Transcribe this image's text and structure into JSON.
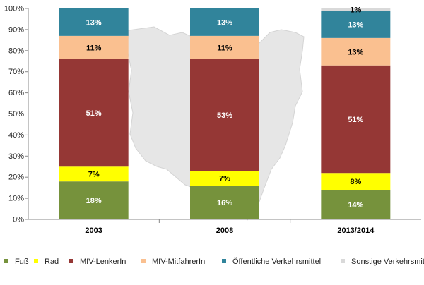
{
  "chart_data": {
    "type": "bar",
    "stacked": true,
    "categories": [
      "2003",
      "2008",
      "2013/2014"
    ],
    "series": [
      {
        "name": "Fuß",
        "color": "#76923c",
        "values": [
          18,
          16,
          14
        ],
        "labels": [
          "18%",
          "16%",
          "14%"
        ]
      },
      {
        "name": "Rad",
        "color": "#ffff00",
        "values": [
          7,
          7,
          8
        ],
        "labels": [
          "7%",
          "7%",
          "8%"
        ]
      },
      {
        "name": "MIV-LenkerIn",
        "color": "#953735",
        "values": [
          51,
          53,
          51
        ],
        "labels": [
          "51%",
          "53%",
          "51%"
        ]
      },
      {
        "name": "MIV-MitfahrerIn",
        "color": "#fac090",
        "values": [
          11,
          11,
          13
        ],
        "labels": [
          "11%",
          "11%",
          "13%"
        ]
      },
      {
        "name": "Öffentliche Verkehrsmittel",
        "color": "#31849b",
        "values": [
          13,
          13,
          13
        ],
        "labels": [
          "13%",
          "13%",
          "13%"
        ]
      },
      {
        "name": "Sonstige Verkehrsmittel",
        "color": "#d9d9d9",
        "values": [
          0,
          0,
          1
        ],
        "labels": [
          "",
          "",
          "1%"
        ]
      }
    ],
    "ylim": [
      0,
      100
    ],
    "yticks": [
      "0%",
      "10%",
      "20%",
      "30%",
      "40%",
      "50%",
      "60%",
      "70%",
      "80%",
      "90%",
      "100%"
    ],
    "legend_position": "bottom",
    "grid": false,
    "background_map_color": "#e6e6e6"
  }
}
